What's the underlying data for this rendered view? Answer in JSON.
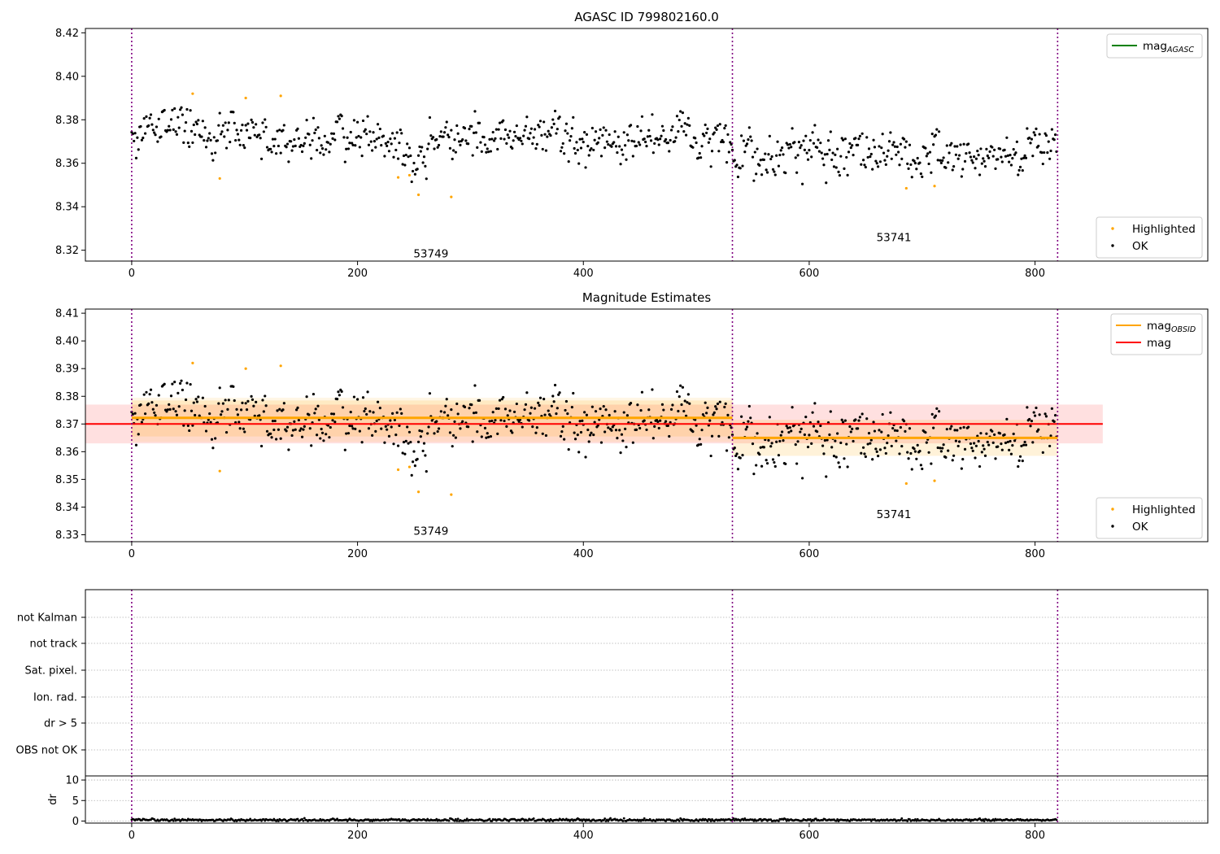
{
  "figure": {
    "title": "AGASC ID 799802160.0"
  },
  "chart_data": [
    {
      "type": "scatter",
      "title": "AGASC ID 799802160.0",
      "xlabel": "",
      "ylabel": "",
      "xlim": [
        -41,
        953
      ],
      "ylim": [
        8.315,
        8.422
      ],
      "xticks": [
        0,
        200,
        400,
        600,
        800
      ],
      "yticks": [
        8.32,
        8.34,
        8.36,
        8.38,
        8.4,
        8.42
      ],
      "grid": false,
      "obsid_boundaries": [
        0,
        532,
        820
      ],
      "obsid_labels": [
        {
          "text": "53749",
          "x": 265,
          "y": 8.3185
        },
        {
          "text": "53741",
          "x": 675,
          "y": 8.326
        }
      ],
      "series": [
        {
          "name": "Highlighted",
          "color": "#ffa500",
          "x": [
            54,
            78,
            101,
            132,
            236,
            246,
            254,
            283,
            686,
            711
          ],
          "y": [
            8.392,
            8.353,
            8.39,
            8.391,
            8.3535,
            8.3545,
            8.3455,
            8.3445,
            8.3485,
            8.3495
          ]
        },
        {
          "name": "OK",
          "color": "#000000",
          "n_points": 820,
          "segments": [
            {
              "x_range": [
                0,
                60
              ],
              "mean": 8.377,
              "spread": 0.0065
            },
            {
              "x_range": [
                60,
                240
              ],
              "mean": 8.372,
              "spread": 0.0055
            },
            {
              "x_range": [
                240,
                262
              ],
              "mean": 8.361,
              "spread": 0.004
            },
            {
              "x_range": [
                262,
                532
              ],
              "mean": 8.371,
              "spread": 0.0055
            },
            {
              "x_range": [
                532,
                650
              ],
              "mean": 8.366,
              "spread": 0.0065
            },
            {
              "x_range": [
                650,
                820
              ],
              "mean": 8.3635,
              "spread": 0.0055
            }
          ]
        }
      ],
      "legends": [
        {
          "position": "upper-right",
          "entries": [
            {
              "label": "mag",
              "subscript": "AGASC",
              "color": "#008000",
              "kind": "line"
            }
          ]
        },
        {
          "position": "lower-right",
          "entries": [
            {
              "label": "Highlighted",
              "color": "#ffa500",
              "kind": "dot"
            },
            {
              "label": "OK",
              "color": "#000000",
              "kind": "dot"
            }
          ]
        }
      ]
    },
    {
      "type": "scatter",
      "title": "Magnitude Estimates",
      "xlabel": "",
      "ylabel": "",
      "xlim": [
        -41,
        953
      ],
      "ylim": [
        8.3275,
        8.4115
      ],
      "xticks": [
        0,
        200,
        400,
        600,
        800
      ],
      "yticks": [
        8.33,
        8.34,
        8.35,
        8.36,
        8.37,
        8.38,
        8.39,
        8.4,
        8.41
      ],
      "grid": false,
      "obsid_boundaries": [
        0,
        532,
        820
      ],
      "obsid_labels": [
        {
          "text": "53749",
          "x": 265,
          "y": 8.3315
        },
        {
          "text": "53741",
          "x": 675,
          "y": 8.3375
        }
      ],
      "mag_line": {
        "name": "mag",
        "color": "#ff0000",
        "value": 8.37,
        "x_range": [
          -41,
          860
        ],
        "band": [
          8.363,
          8.377
        ]
      },
      "obsid_means": [
        {
          "x_range": [
            0,
            532
          ],
          "mean": 8.3722,
          "band": [
            8.3655,
            8.3785
          ],
          "band_outer": [
            8.3635,
            8.3795
          ]
        },
        {
          "x_range": [
            532,
            820
          ],
          "mean": 8.365,
          "band": [
            8.3585,
            8.3715
          ]
        }
      ],
      "series_same_as_panel": 1,
      "legends": [
        {
          "position": "upper-right",
          "entries": [
            {
              "label": "mag",
              "subscript": "OBSID",
              "color": "#ffa500",
              "kind": "line"
            },
            {
              "label": "mag",
              "subscript": "",
              "color": "#ff0000",
              "kind": "line"
            }
          ]
        },
        {
          "position": "lower-right",
          "entries": [
            {
              "label": "Highlighted",
              "color": "#ffa500",
              "kind": "dot"
            },
            {
              "label": "OK",
              "color": "#000000",
              "kind": "dot"
            }
          ]
        }
      ]
    },
    {
      "type": "scatter",
      "title": "",
      "xlim": [
        -41,
        953
      ],
      "category_axis": [
        "not Kalman",
        "not track",
        "Sat. pixel.",
        "Ion. rad.",
        "dr > 5",
        "OBS not OK"
      ],
      "grid": true,
      "obsid_boundaries": [
        0,
        532,
        820
      ],
      "flagged_points": []
    },
    {
      "type": "scatter",
      "title": "",
      "xlabel": "",
      "ylabel": "dr",
      "xlim": [
        -41,
        953
      ],
      "ylim": [
        -0.5,
        11
      ],
      "xticks": [
        0,
        200,
        400,
        600,
        800
      ],
      "yticks": [
        0,
        5,
        10
      ],
      "grid": true,
      "obsid_boundaries": [
        0,
        532,
        820
      ],
      "series": [
        {
          "name": "",
          "color": "#000000",
          "n_points": 820,
          "mean": 0.25,
          "spread": 0.25
        }
      ]
    }
  ]
}
